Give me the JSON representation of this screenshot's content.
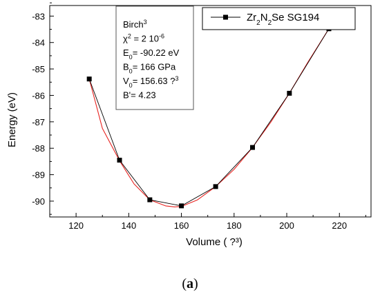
{
  "chart_data": {
    "type": "line",
    "xlabel": "Volume ( ?³)",
    "ylabel": "Energy (eV)",
    "xlim": [
      110,
      232
    ],
    "ylim": [
      -90.6,
      -82.6
    ],
    "xticks": [
      120,
      140,
      160,
      180,
      200,
      220
    ],
    "yticks": [
      -90,
      -89,
      -88,
      -87,
      -86,
      -85,
      -84,
      -83
    ],
    "grid": false,
    "legend_position": "top-right",
    "series": [
      {
        "name": "Zr2N2Se SG194",
        "style": "line-with-square-markers",
        "color": "#000000",
        "x": [
          125,
          136.5,
          148,
          160,
          173,
          187,
          201,
          216
        ],
        "y": [
          -85.38,
          -88.45,
          -89.95,
          -90.18,
          -89.45,
          -87.97,
          -85.92,
          -83.48
        ]
      },
      {
        "name": "",
        "style": "fit-curve",
        "color": "#e8221f",
        "x": [
          125,
          130,
          136.5,
          142,
          148,
          154,
          157.5,
          160,
          166,
          173,
          180,
          187,
          194,
          201,
          208,
          216
        ],
        "y": [
          -85.38,
          -87.25,
          -88.47,
          -89.35,
          -89.95,
          -90.18,
          -90.22,
          -90.2,
          -89.96,
          -89.45,
          -88.8,
          -87.97,
          -87.0,
          -85.92,
          -84.75,
          -83.48
        ]
      }
    ],
    "annotation": {
      "lines": [
        {
          "parts": [
            {
              "t": "Birch"
            },
            {
              "t": "3",
              "sup": true
            }
          ]
        },
        {
          "parts": [
            {
              "t": "χ"
            },
            {
              "t": "2",
              "sup": true
            },
            {
              "t": " = 2 10"
            },
            {
              "t": "-6",
              "sup": true
            }
          ]
        },
        {
          "parts": [
            {
              "t": "E"
            },
            {
              "t": "0",
              "sub": true
            },
            {
              "t": "= -90.22 eV"
            }
          ]
        },
        {
          "parts": [
            {
              "t": "B"
            },
            {
              "t": "0",
              "sub": true
            },
            {
              "t": "= 166 GPa"
            }
          ]
        },
        {
          "parts": [
            {
              "t": "V"
            },
            {
              "t": "0",
              "sub": true
            },
            {
              "t": "= 156.63 ?"
            },
            {
              "t": "3",
              "sup": true
            }
          ]
        },
        {
          "parts": [
            {
              "t": "B'= 4.23"
            }
          ]
        }
      ]
    },
    "legend_label_parts": [
      {
        "t": "Zr"
      },
      {
        "t": "2",
        "sub": true
      },
      {
        "t": "N"
      },
      {
        "t": "2",
        "sub": true
      },
      {
        "t": "Se SG194"
      }
    ]
  },
  "caption": {
    "open": "(",
    "letter": "a",
    "close": ")"
  }
}
